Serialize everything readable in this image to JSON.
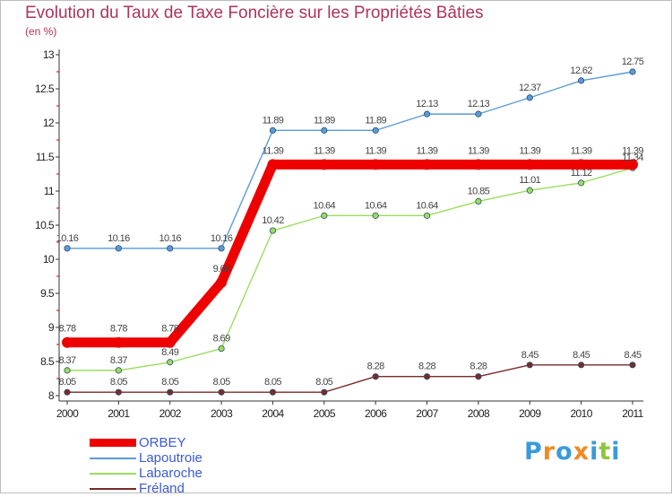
{
  "chart_data": {
    "type": "line",
    "title": "Evolution du Taux de Taxe Foncière sur les Propriétés Bâties",
    "subtitle": "(en %)",
    "xlabel": "",
    "ylabel": "",
    "categories": [
      "2000",
      "2001",
      "2002",
      "2003",
      "2004",
      "2005",
      "2006",
      "2007",
      "2008",
      "2009",
      "2010",
      "2011"
    ],
    "ylim": [
      8,
      13
    ],
    "yticks": [
      "8",
      "8.5",
      "9",
      "9.5",
      "10",
      "10.5",
      "11",
      "11.5",
      "12",
      "12.5",
      "13"
    ],
    "ytick_values": [
      8,
      8.5,
      9,
      9.5,
      10,
      10.5,
      11,
      11.5,
      12,
      12.5,
      13
    ],
    "series": [
      {
        "name": "ORBEY",
        "color": "#ee0000",
        "values": [
          8.78,
          8.78,
          8.78,
          9.66,
          11.39,
          11.39,
          11.39,
          11.39,
          11.39,
          11.39,
          11.39,
          11.39
        ],
        "labels": [
          "8.78",
          "8.78",
          "8.78",
          "9.66",
          "11.39",
          "11.39",
          "11.39",
          "11.39",
          "11.39",
          "11.39",
          "11.39",
          "11.39"
        ]
      },
      {
        "name": "Lapoutroie",
        "color": "#5b9bd5",
        "values": [
          10.16,
          10.16,
          10.16,
          10.16,
          11.89,
          11.89,
          11.89,
          12.13,
          12.13,
          12.37,
          12.62,
          12.75
        ],
        "labels": [
          "10.16",
          "10.16",
          "10.16",
          "10.16",
          "11.89",
          "11.89",
          "11.89",
          "12.13",
          "12.13",
          "12.37",
          "12.62",
          "12.75"
        ]
      },
      {
        "name": "Labaroche",
        "color": "#9bdc5f",
        "values": [
          8.37,
          8.37,
          8.49,
          8.69,
          10.42,
          10.64,
          10.64,
          10.64,
          10.85,
          11.01,
          11.12,
          11.34
        ],
        "labels": [
          "8.37",
          "8.37",
          "8.49",
          "8.69",
          "10.42",
          "10.64",
          "10.64",
          "10.64",
          "10.85",
          "11.01",
          "11.12",
          "11.34"
        ]
      },
      {
        "name": "Fréland",
        "color": "#7a2a2a",
        "values": [
          8.05,
          8.05,
          8.05,
          8.05,
          8.05,
          8.05,
          8.28,
          8.28,
          8.28,
          8.45,
          8.45,
          8.45
        ],
        "labels": [
          "8.05",
          "8.05",
          "8.05",
          "8.05",
          "8.05",
          "8.05",
          "8.28",
          "8.28",
          "8.28",
          "8.45",
          "8.45",
          "8.45"
        ]
      }
    ],
    "grid": false,
    "legend_position": "bottom-left"
  },
  "branding": {
    "logo_letters": [
      "P",
      "r",
      "o",
      "x",
      "i",
      "t",
      "i"
    ],
    "logo_colors": [
      "#3a9ad9",
      "#f08a24",
      "#3a9ad9",
      "#f08a24",
      "#3a9ad9",
      "#8cc63f",
      "#3a9ad9"
    ]
  }
}
